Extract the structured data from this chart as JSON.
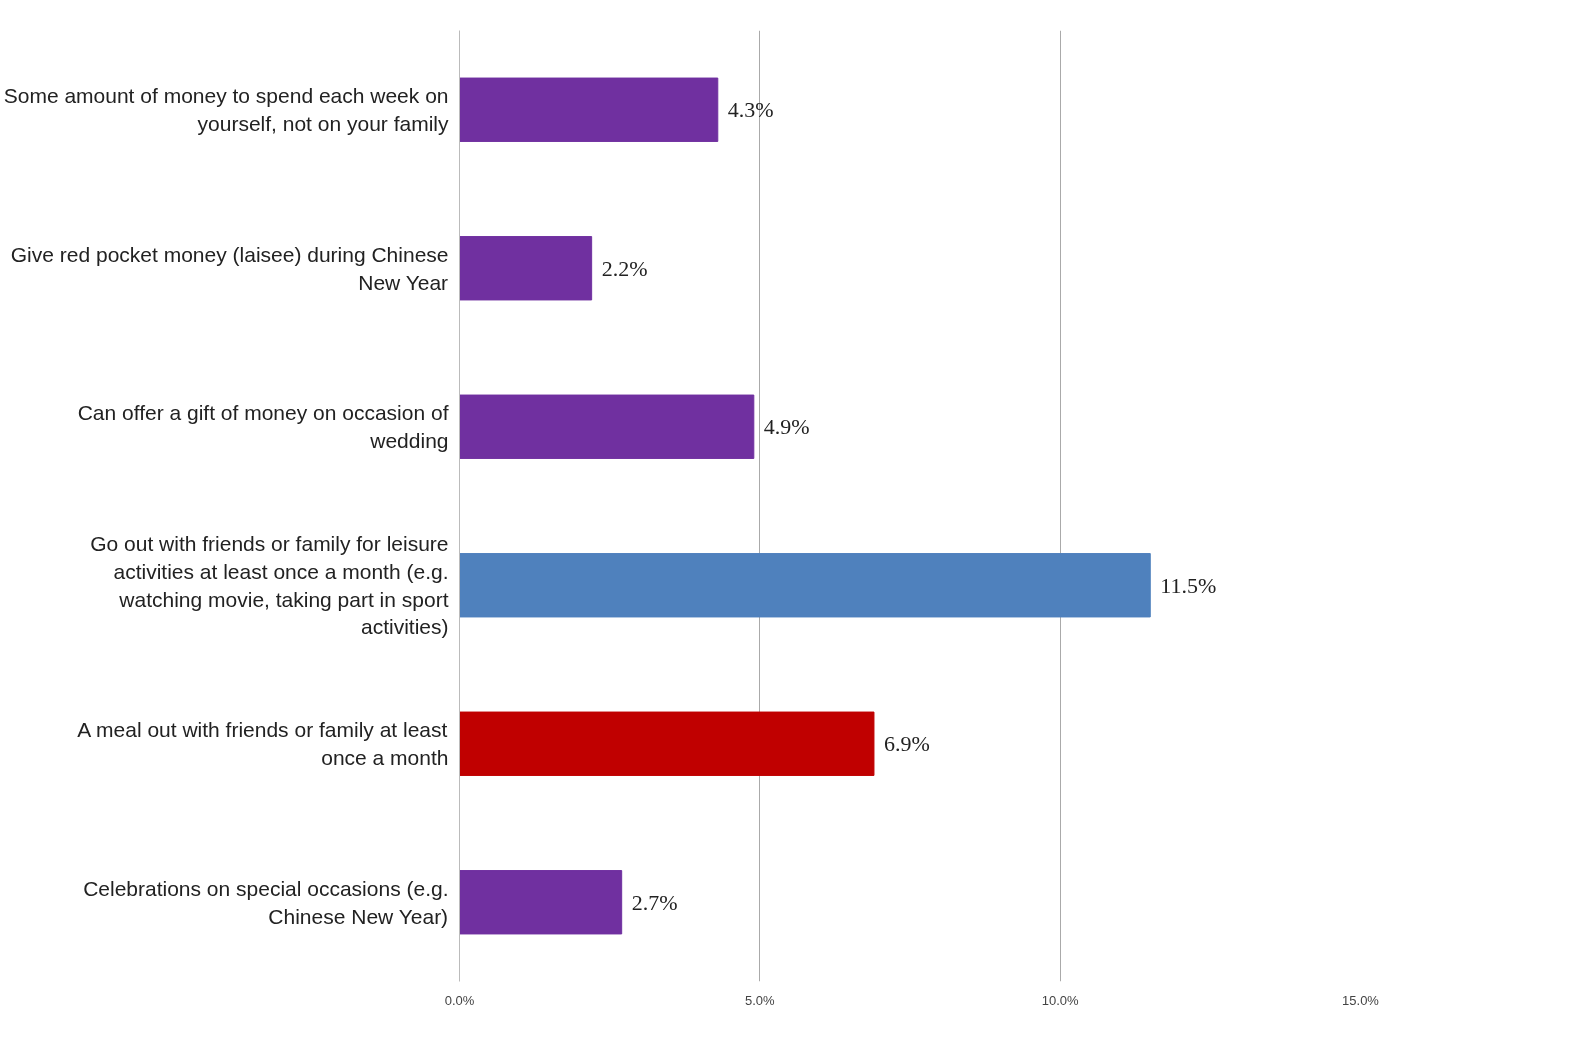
{
  "chart_data": {
    "type": "bar",
    "orientation": "horizontal",
    "categories": [
      "Some amount of money to spend each week on yourself, not on your family",
      "Give red pocket money (laisee) during Chinese New Year",
      "Can offer a gift of money on occasion of wedding",
      "Go out with friends or family for leisure activities at least once a month (e.g. watching movie, taking part in sport activities)",
      "A meal out with friends or family at least once a month",
      "Celebrations on special occasions (e.g. Chinese New Year)"
    ],
    "values": [
      4.3,
      2.2,
      4.9,
      11.5,
      6.9,
      2.7
    ],
    "colors": [
      "#7030a0",
      "#7030a0",
      "#7030a0",
      "#4f81bd",
      "#c00000",
      "#7030a0"
    ],
    "value_labels": [
      "4.3%",
      "2.2%",
      "4.9%",
      "11.5%",
      "6.9%",
      "2.7%"
    ],
    "xlim": [
      0,
      15
    ],
    "xticks": [
      {
        "value": 0,
        "label": "0.0%"
      },
      {
        "value": 5,
        "label": "5.0%"
      },
      {
        "value": 10,
        "label": "10.0%"
      },
      {
        "value": 15,
        "label": "15.0%"
      }
    ],
    "grid": "x"
  }
}
